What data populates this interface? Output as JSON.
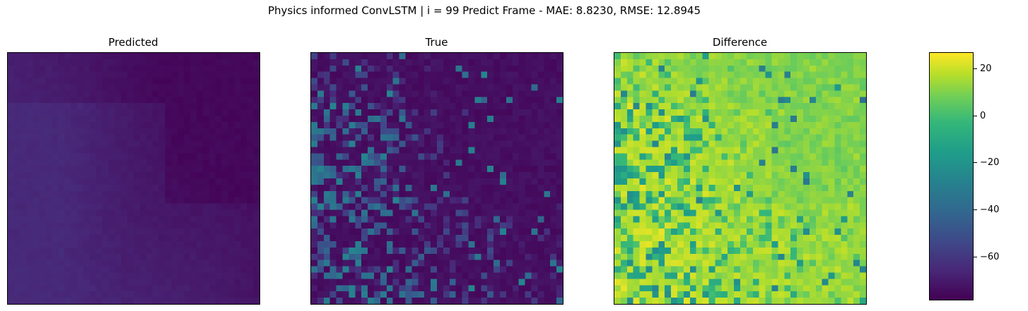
{
  "chart_data": {
    "type": "heatmap",
    "title": "Physics informed ConvLSTM | i = 99 Predict Frame - MAE: 8.8230, RMSE: 12.8945",
    "panels": [
      {
        "name": "predicted",
        "title": "Predicted"
      },
      {
        "name": "true",
        "title": "True"
      },
      {
        "name": "difference",
        "title": "Difference"
      }
    ],
    "grid_size": [
      40,
      40
    ],
    "colormap": "viridis",
    "colorbar": {
      "range": [
        -78,
        26
      ],
      "ticks": [
        20,
        0,
        -20,
        -40,
        -60
      ],
      "tick_labels": [
        "20",
        "0",
        "−20",
        "−40",
        "−60"
      ]
    },
    "xticks": [],
    "yticks": []
  },
  "colors": {
    "viridis_low": "#440154",
    "viridis_high": "#fde725"
  }
}
